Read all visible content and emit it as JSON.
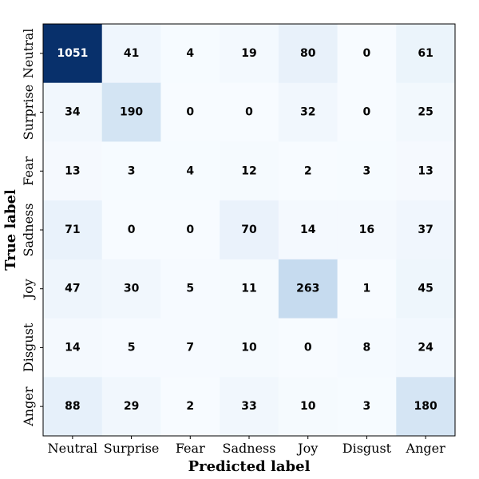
{
  "chart_data": {
    "type": "heatmap",
    "title": "",
    "xlabel": "Predicted label",
    "ylabel": "True label",
    "x_categories": [
      "Neutral",
      "Surprise",
      "Fear",
      "Sadness",
      "Joy",
      "Disgust",
      "Anger"
    ],
    "y_categories": [
      "Neutral",
      "Surprise",
      "Fear",
      "Sadness",
      "Joy",
      "Disgust",
      "Anger"
    ],
    "matrix": [
      [
        1051,
        41,
        4,
        19,
        80,
        0,
        61
      ],
      [
        34,
        190,
        0,
        0,
        32,
        0,
        25
      ],
      [
        13,
        3,
        4,
        12,
        2,
        3,
        13
      ],
      [
        71,
        0,
        0,
        70,
        14,
        16,
        37
      ],
      [
        47,
        30,
        5,
        11,
        263,
        1,
        45
      ],
      [
        14,
        5,
        7,
        10,
        0,
        8,
        24
      ],
      [
        88,
        29,
        2,
        33,
        10,
        3,
        180
      ]
    ],
    "colormap": "Blues",
    "colors": {
      "low": "#f7fbff",
      "mid": "#c6dbef",
      "high": "#08306b",
      "text": "#000000"
    }
  }
}
